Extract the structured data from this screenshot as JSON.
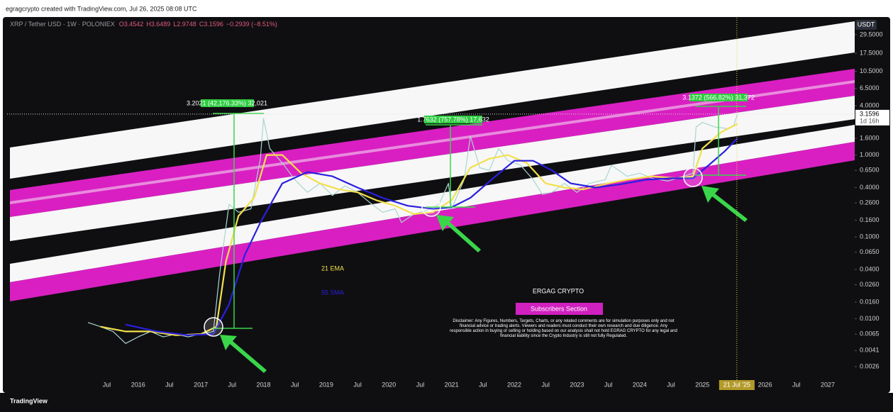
{
  "page_header": "egragcrypto created with TradingView.com, Jul 26, 2025 08:08 UTC",
  "footer": "TradingView",
  "chart_data": {
    "type": "line",
    "symbol": "XRP / Tether USD · 1W · POLONIEX",
    "ohlc": [
      "O3.4542",
      "H3.6489",
      "L2.9748",
      "C3.1596",
      "−0.2939 (−8.51%)"
    ],
    "currency": "USDT",
    "last_price": {
      "value": 3.1596,
      "label": "3.1596"
    },
    "countdown": "1d 16h",
    "crosshair_x": {
      "value": 2025.55,
      "label": "21 Jul '25"
    },
    "log_scale": true,
    "grid": false,
    "xlim": [
      2013.91,
      2027.43
    ],
    "ylim": [
      0.00155,
      47.5
    ],
    "xticks": [
      {
        "value": 2015.5,
        "label": "Jul"
      },
      2016,
      {
        "value": 2016.5,
        "label": "Jul"
      },
      2017,
      {
        "value": 2017.5,
        "label": "Jul"
      },
      2018,
      {
        "value": 2018.5,
        "label": "Jul"
      },
      2019,
      {
        "value": 2019.5,
        "label": "Jul"
      },
      2020,
      {
        "value": 2020.5,
        "label": "Jul"
      },
      2021,
      {
        "value": 2021.5,
        "label": "Jul"
      },
      2022,
      {
        "value": 2022.5,
        "label": "Jul"
      },
      2023,
      {
        "value": 2023.5,
        "label": "Jul"
      },
      2024,
      {
        "value": 2024.5,
        "label": "Jul"
      },
      2025,
      2026,
      {
        "value": 2026.5,
        "label": "Jul"
      },
      2027
    ],
    "yticks": [
      {
        "value": 29.5,
        "label": "29.5000"
      },
      {
        "value": 17.5,
        "label": "17.5000"
      },
      {
        "value": 10.5,
        "label": "10.5000"
      },
      {
        "value": 6.5,
        "label": "6.5000"
      },
      {
        "value": 4,
        "label": "4.0000"
      },
      {
        "value": 1.6,
        "label": "1.6000"
      },
      {
        "value": 1,
        "label": "1.0000"
      },
      {
        "value": 0.65,
        "label": "0.6500"
      },
      {
        "value": 0.4,
        "label": "0.4000"
      },
      {
        "value": 0.26,
        "label": "0.2600"
      },
      {
        "value": 0.16,
        "label": "0.1600"
      },
      {
        "value": 0.1,
        "label": "0.1000"
      },
      {
        "value": 0.065,
        "label": "0.0650"
      },
      {
        "value": 0.04,
        "label": "0.0400"
      },
      {
        "value": 0.026,
        "label": "0.0260"
      },
      {
        "value": 0.016,
        "label": "0.0160"
      },
      {
        "value": 0.01,
        "label": "0.0100"
      },
      {
        "value": 0.0065,
        "label": "0.0065"
      },
      {
        "value": 0.0041,
        "label": "0.0041"
      },
      {
        "value": 0.0026,
        "label": "0.0026"
      }
    ],
    "series": [
      {
        "color": "#a9d6cf",
        "x": [
          2015.2,
          2015.4,
          2015.6,
          2015.8,
          2016.0,
          2016.2,
          2016.4,
          2016.6,
          2016.8,
          2017.0,
          2017.2,
          2017.3,
          2017.45,
          2017.6,
          2017.8,
          2017.95,
          2018.0,
          2018.1,
          2018.3,
          2018.5,
          2018.7,
          2018.9,
          2019.1,
          2019.3,
          2019.5,
          2019.7,
          2019.9,
          2020.1,
          2020.2,
          2020.4,
          2020.6,
          2020.8,
          2020.95,
          2021.0,
          2021.2,
          2021.3,
          2021.45,
          2021.6,
          2021.75,
          2021.9,
          2022.1,
          2022.3,
          2022.45,
          2022.6,
          2022.8,
          2023.0,
          2023.2,
          2023.45,
          2023.55,
          2023.8,
          2024.0,
          2024.2,
          2024.45,
          2024.7,
          2024.85,
          2024.9,
          2025.0,
          2025.2,
          2025.4,
          2025.5,
          2025.56
        ],
        "values": [
          0.009,
          0.008,
          0.007,
          0.005,
          0.006,
          0.007,
          0.006,
          0.0065,
          0.006,
          0.0065,
          0.007,
          0.035,
          0.25,
          0.2,
          0.22,
          0.9,
          2.8,
          1.2,
          0.8,
          0.5,
          0.35,
          0.45,
          0.32,
          0.42,
          0.35,
          0.26,
          0.2,
          0.22,
          0.15,
          0.19,
          0.21,
          0.25,
          0.45,
          0.22,
          0.5,
          1.7,
          0.7,
          0.65,
          1.2,
          0.85,
          0.75,
          0.5,
          0.33,
          0.35,
          0.45,
          0.35,
          0.45,
          0.5,
          0.75,
          0.55,
          0.6,
          0.52,
          0.48,
          0.55,
          0.6,
          2.2,
          2.5,
          2.2,
          2.1,
          2.3,
          3.16
        ]
      },
      {
        "name": "21 EMA",
        "color": "#f3e04c",
        "x": [
          2015.4,
          2015.8,
          2016.2,
          2016.6,
          2017.0,
          2017.25,
          2017.4,
          2017.6,
          2017.85,
          2018.05,
          2018.3,
          2018.6,
          2018.9,
          2019.2,
          2019.5,
          2019.8,
          2020.1,
          2020.4,
          2020.7,
          2021.0,
          2021.3,
          2021.6,
          2021.9,
          2022.2,
          2022.5,
          2022.8,
          2023.1,
          2023.5,
          2023.8,
          2024.2,
          2024.6,
          2024.85,
          2025.0,
          2025.3,
          2025.56
        ],
        "values": [
          0.008,
          0.007,
          0.007,
          0.0063,
          0.0065,
          0.008,
          0.05,
          0.18,
          0.3,
          1.0,
          1.0,
          0.6,
          0.45,
          0.38,
          0.35,
          0.28,
          0.24,
          0.19,
          0.2,
          0.28,
          0.7,
          0.9,
          1.0,
          0.8,
          0.45,
          0.4,
          0.38,
          0.45,
          0.5,
          0.55,
          0.52,
          0.55,
          1.2,
          1.9,
          2.4
        ]
      },
      {
        "name": "55 SMA",
        "color": "#2a1fe0",
        "x": [
          2015.8,
          2016.3,
          2016.8,
          2017.2,
          2017.45,
          2017.7,
          2017.95,
          2018.3,
          2018.7,
          2019.1,
          2019.5,
          2019.9,
          2020.3,
          2020.7,
          2021.0,
          2021.3,
          2021.7,
          2022.0,
          2022.3,
          2022.6,
          2022.9,
          2023.3,
          2023.7,
          2024.1,
          2024.5,
          2024.85,
          2025.1,
          2025.35,
          2025.56
        ],
        "values": [
          0.0085,
          0.007,
          0.0063,
          0.0065,
          0.015,
          0.06,
          0.15,
          0.45,
          0.62,
          0.55,
          0.4,
          0.3,
          0.24,
          0.22,
          0.23,
          0.3,
          0.55,
          0.85,
          0.85,
          0.65,
          0.45,
          0.4,
          0.44,
          0.5,
          0.52,
          0.52,
          0.75,
          1.1,
          1.6
        ]
      }
    ],
    "annotations": [
      "3.2021 (42,176.33%) 32,021",
      "1.7632 (757.78%) 17,632",
      "3.1372 (566.82%) 31,372"
    ],
    "watermark": "ERGAG CRYPTO",
    "badge": "Subscribers Section",
    "disclaimer": "Disclaimer: Any Figures, Numbers, Targets, Charts, or any related comments are for simulation purposes only and not financial advice or trading alerts. Viewers and readers must conduct their own research and due diligence. Any responsible action in buying or selling or holding based on our analysis shall not hold EGRAG CRYPTO for any legal and financial liability since the Crypto Industry is still not fully Regulated."
  }
}
